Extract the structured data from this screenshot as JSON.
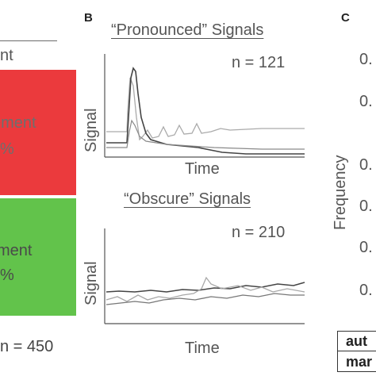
{
  "panel_a": {
    "header": "nt",
    "red_label": "ement",
    "red_pct": "%",
    "green_label": "ment",
    "green_pct": "%",
    "n_label": "n = 450",
    "colors": {
      "red": "#eb3a3d",
      "green": "#62c34b"
    }
  },
  "panel_b": {
    "letter": "B",
    "top": {
      "title": "“Pronounced” Signals",
      "n": "n = 121",
      "ylabel": "Signal",
      "xlabel": "Time"
    },
    "bottom": {
      "title": "“Obscure” Signals",
      "n": "n = 210",
      "ylabel": "Signal",
      "xlabel": "Time"
    }
  },
  "panel_c": {
    "letter": "C",
    "ylabel": "Frequency",
    "ticks": [
      "0.",
      "0.",
      "0.",
      "0.",
      "0.",
      "0."
    ],
    "table_rows": [
      "aut",
      "mar"
    ]
  }
}
